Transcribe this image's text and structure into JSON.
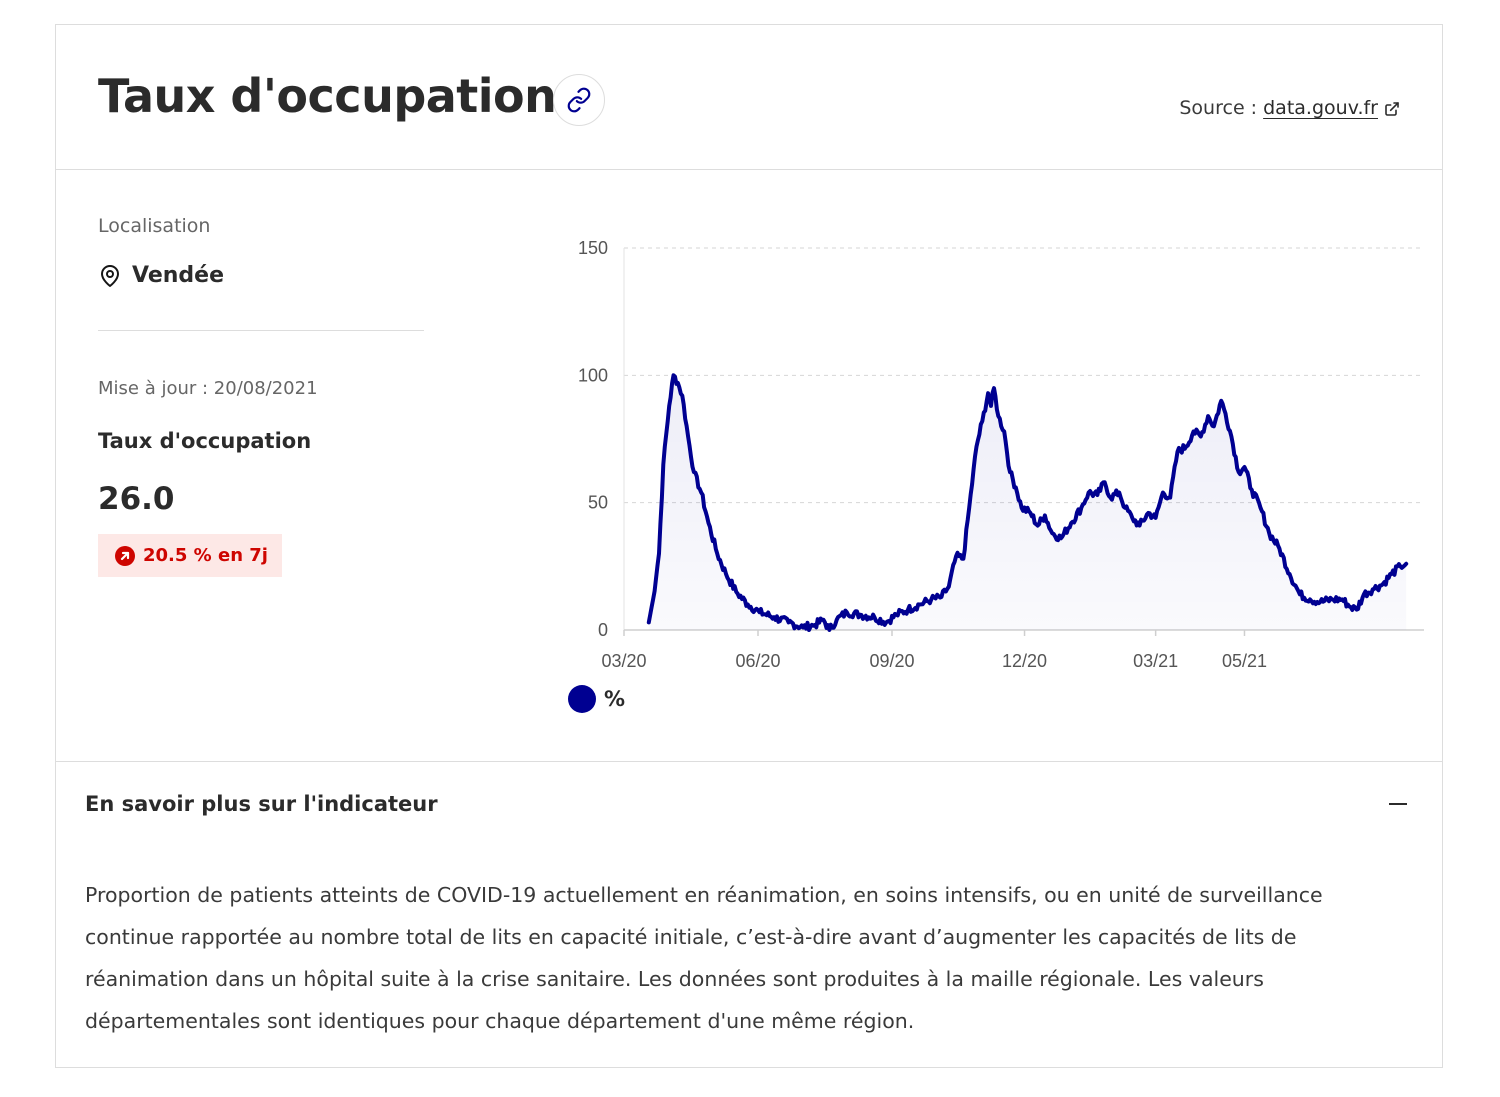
{
  "header": {
    "title": "Taux d'occupation",
    "source_label": "Source :",
    "source_link": "data.gouv.fr"
  },
  "location": {
    "label": "Localisation",
    "value": "Vendée"
  },
  "indicator": {
    "update": "Mise à jour : 20/08/2021",
    "label": "Taux d'occupation",
    "value": "26.0",
    "trend": "20.5 % en 7j"
  },
  "colors": {
    "series": "#000091",
    "trend": "#ce0500",
    "trend_bg": "#fde8e6"
  },
  "icons": {
    "link": "link-icon",
    "source": "external-link-icon",
    "location": "map-pin-icon",
    "trend": "arrow-up-right-icon",
    "collapse": "minus-icon"
  },
  "chart_data": {
    "type": "area",
    "title": "",
    "xlabel": "",
    "ylabel": "",
    "ylim": [
      0,
      150
    ],
    "yticks": [
      0,
      50,
      100,
      150
    ],
    "x_range": [
      "2020-03-18",
      "2021-08-20"
    ],
    "xticks": [
      {
        "date": "2020-03-01",
        "label": "03/20"
      },
      {
        "date": "2020-06-01",
        "label": "06/20"
      },
      {
        "date": "2020-09-01",
        "label": "09/20"
      },
      {
        "date": "2020-12-01",
        "label": "12/20"
      },
      {
        "date": "2021-03-01",
        "label": "03/21"
      },
      {
        "date": "2021-05-01",
        "label": "05/21"
      }
    ],
    "grid": "horizontal dashed",
    "legend_position": "bottom-left",
    "series": [
      {
        "name": "%",
        "points": [
          [
            "2020-03-18",
            3
          ],
          [
            "2020-03-21",
            12
          ],
          [
            "2020-03-25",
            30
          ],
          [
            "2020-03-28",
            65
          ],
          [
            "2020-04-01",
            88
          ],
          [
            "2020-04-04",
            100
          ],
          [
            "2020-04-07",
            97
          ],
          [
            "2020-04-10",
            92
          ],
          [
            "2020-04-14",
            76
          ],
          [
            "2020-04-18",
            62
          ],
          [
            "2020-04-23",
            54
          ],
          [
            "2020-04-28",
            42
          ],
          [
            "2020-05-04",
            30
          ],
          [
            "2020-05-10",
            22
          ],
          [
            "2020-05-17",
            15
          ],
          [
            "2020-05-25",
            10
          ],
          [
            "2020-06-02",
            7
          ],
          [
            "2020-06-12",
            5
          ],
          [
            "2020-06-22",
            3
          ],
          [
            "2020-07-02",
            1
          ],
          [
            "2020-07-10",
            2
          ],
          [
            "2020-07-16",
            4
          ],
          [
            "2020-07-20",
            0
          ],
          [
            "2020-07-25",
            4
          ],
          [
            "2020-08-01",
            7
          ],
          [
            "2020-08-10",
            6
          ],
          [
            "2020-08-20",
            5
          ],
          [
            "2020-08-28",
            3
          ],
          [
            "2020-09-04",
            6
          ],
          [
            "2020-09-12",
            8
          ],
          [
            "2020-09-20",
            10
          ],
          [
            "2020-09-28",
            12
          ],
          [
            "2020-10-05",
            13
          ],
          [
            "2020-10-10",
            17
          ],
          [
            "2020-10-15",
            29
          ],
          [
            "2020-10-20",
            28
          ],
          [
            "2020-10-24",
            48
          ],
          [
            "2020-10-29",
            72
          ],
          [
            "2020-11-02",
            82
          ],
          [
            "2020-11-06",
            93
          ],
          [
            "2020-11-08",
            88
          ],
          [
            "2020-11-10",
            95
          ],
          [
            "2020-11-13",
            84
          ],
          [
            "2020-11-17",
            78
          ],
          [
            "2020-11-21",
            62
          ],
          [
            "2020-11-25",
            56
          ],
          [
            "2020-11-29",
            48
          ],
          [
            "2020-12-05",
            46
          ],
          [
            "2020-12-10",
            41
          ],
          [
            "2020-12-15",
            45
          ],
          [
            "2020-12-20",
            38
          ],
          [
            "2020-12-26",
            36
          ],
          [
            "2021-01-02",
            42
          ],
          [
            "2021-01-09",
            48
          ],
          [
            "2021-01-14",
            54
          ],
          [
            "2021-01-20",
            53
          ],
          [
            "2021-01-25",
            58
          ],
          [
            "2021-01-29",
            52
          ],
          [
            "2021-02-04",
            54
          ],
          [
            "2021-02-08",
            48
          ],
          [
            "2021-02-13",
            44
          ],
          [
            "2021-02-18",
            41
          ],
          [
            "2021-02-24",
            46
          ],
          [
            "2021-03-01",
            44
          ],
          [
            "2021-03-06",
            54
          ],
          [
            "2021-03-11",
            52
          ],
          [
            "2021-03-16",
            70
          ],
          [
            "2021-03-22",
            72
          ],
          [
            "2021-03-27",
            78
          ],
          [
            "2021-04-01",
            76
          ],
          [
            "2021-04-06",
            84
          ],
          [
            "2021-04-10",
            80
          ],
          [
            "2021-04-15",
            90
          ],
          [
            "2021-04-18",
            85
          ],
          [
            "2021-04-22",
            76
          ],
          [
            "2021-04-27",
            62
          ],
          [
            "2021-05-01",
            64
          ],
          [
            "2021-05-06",
            55
          ],
          [
            "2021-05-12",
            48
          ],
          [
            "2021-05-18",
            38
          ],
          [
            "2021-05-25",
            32
          ],
          [
            "2021-06-01",
            22
          ],
          [
            "2021-06-08",
            14
          ],
          [
            "2021-06-15",
            12
          ],
          [
            "2021-06-22",
            11
          ],
          [
            "2021-06-30",
            12
          ],
          [
            "2021-07-07",
            12
          ],
          [
            "2021-07-13",
            9
          ],
          [
            "2021-07-17",
            8
          ],
          [
            "2021-07-22",
            14
          ],
          [
            "2021-07-28",
            16
          ],
          [
            "2021-08-04",
            18
          ],
          [
            "2021-08-10",
            22
          ],
          [
            "2021-08-16",
            25
          ],
          [
            "2021-08-20",
            26
          ]
        ]
      }
    ]
  },
  "more": {
    "title": "En savoir plus sur l'indicateur",
    "description": "Proportion de patients atteints de COVID-19 actuellement en réanimation, en soins intensifs, ou en unité de surveillance continue rapportée au nombre total de lits en capacité initiale, c’est-à-dire avant d’augmenter les capacités de lits de réanimation dans un hôpital suite à la crise sanitaire. Les données sont produites à la maille régionale. Les valeurs départementales sont identiques pour chaque département d'une même région."
  }
}
